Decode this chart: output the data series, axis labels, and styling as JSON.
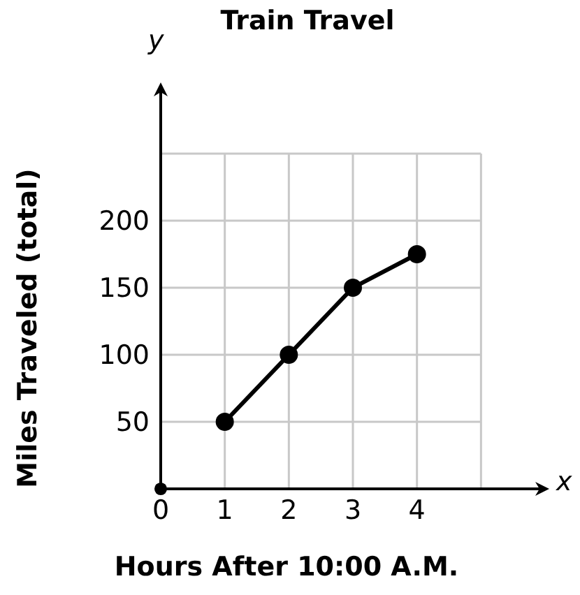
{
  "chart_data": {
    "type": "line",
    "title": "Train Travel",
    "xlabel": "Hours After 10:00 A.M.",
    "ylabel": "Miles Traveled (total)",
    "annotations": [
      "y",
      "x"
    ],
    "series": [
      {
        "type": "line",
        "color": "#000000",
        "x": [
          1,
          2,
          3,
          4
        ],
        "values": [
          50,
          100,
          150,
          175
        ]
      },
      {
        "type": "scatter",
        "color": "#000000",
        "x": [
          0
        ],
        "values": [
          0
        ]
      }
    ],
    "xlim": [
      0,
      6
    ],
    "ylim": [
      0,
      300
    ],
    "xticks": [
      0,
      1,
      2,
      3,
      4,
      {
        "value": 5,
        "label": null
      }
    ],
    "yticks": [
      {
        "value": 0,
        "label": null
      },
      50,
      100,
      150,
      200,
      {
        "value": 250,
        "label": null
      }
    ],
    "grid": true,
    "marker": "circle",
    "line_style": "solid",
    "legend": false
  }
}
